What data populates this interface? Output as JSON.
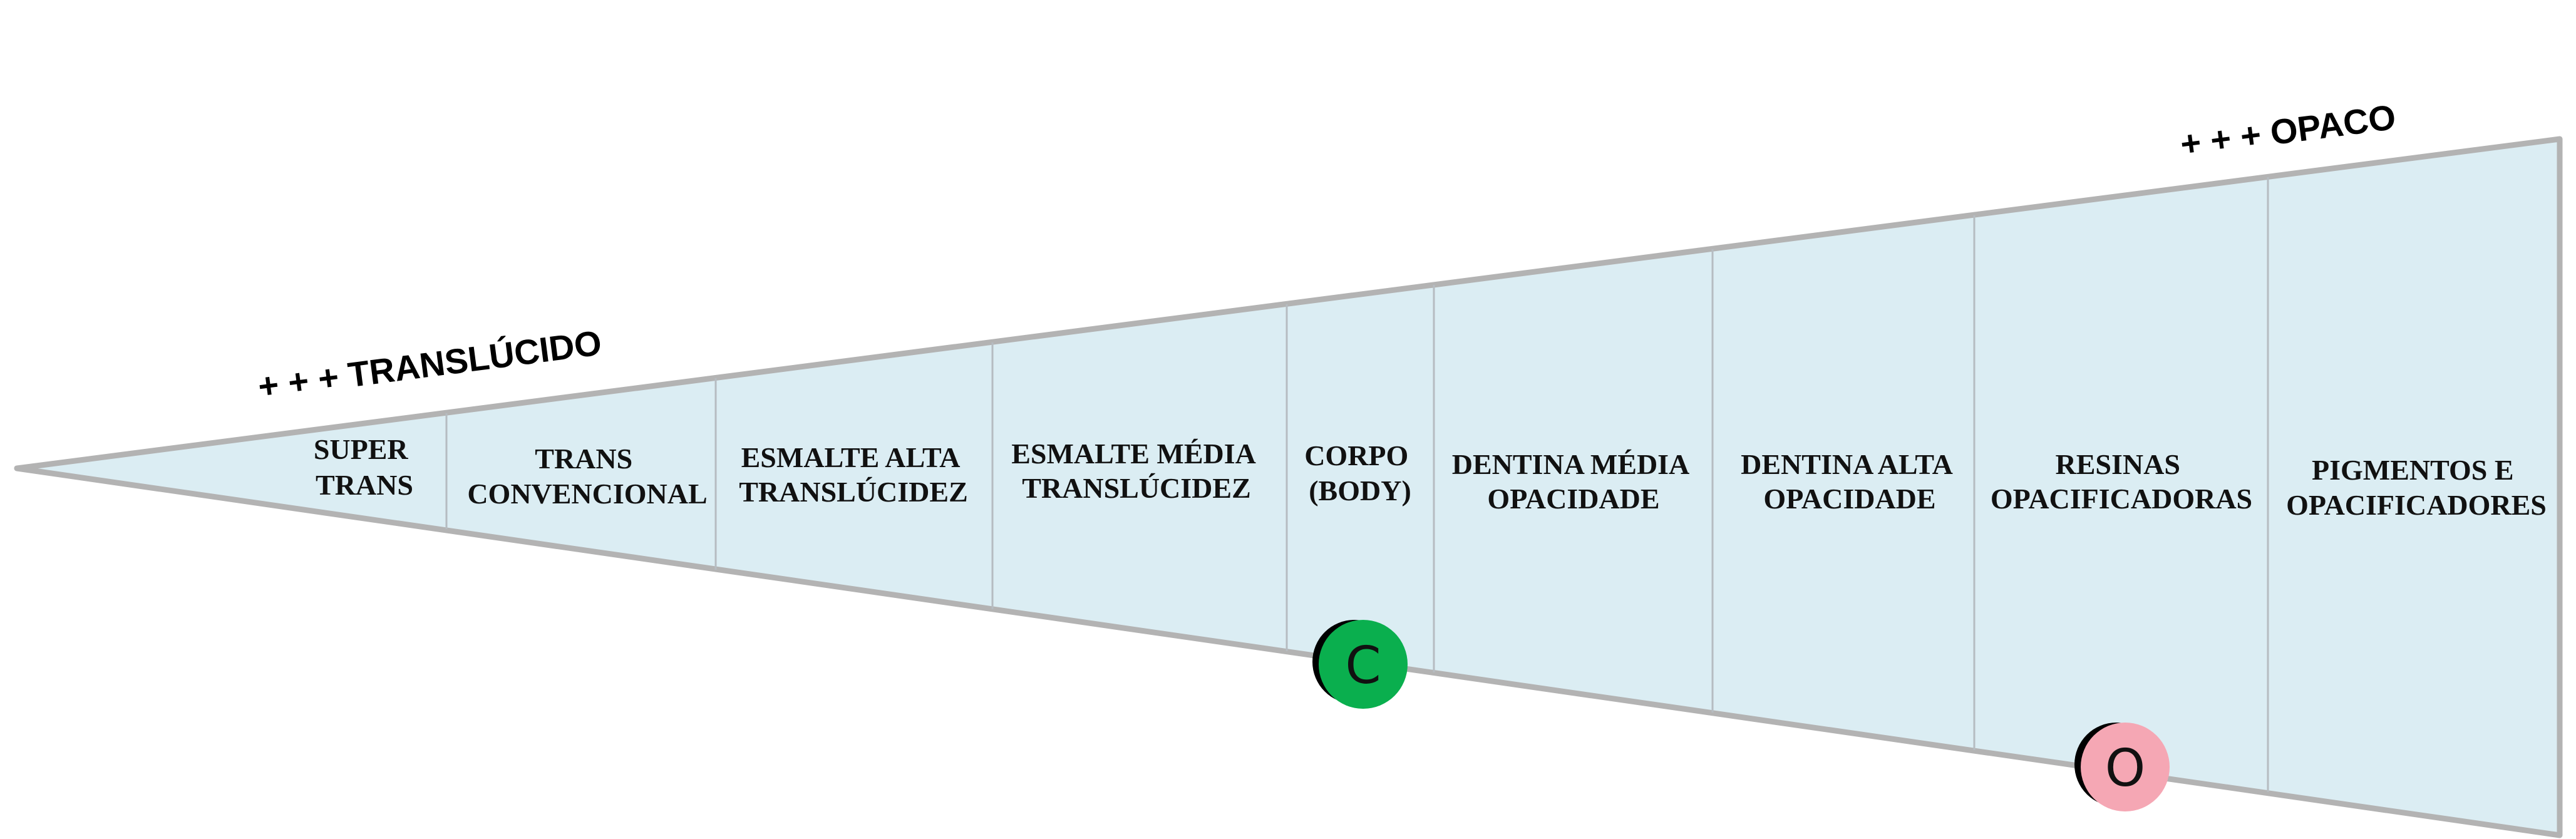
{
  "diagram": {
    "left_label": "+ + + TRANSLÚCIDO",
    "right_label": "+ + + OPACO",
    "segments": [
      {
        "line1": "SUPER",
        "line2": "TRANS"
      },
      {
        "line1": "TRANS",
        "line2": "CONVENCIONAL"
      },
      {
        "line1": "ESMALTE ALTA",
        "line2": "TRANSLÚCIDEZ"
      },
      {
        "line1": "ESMALTE MÉDIA",
        "line2": "TRANSLÚCIDEZ"
      },
      {
        "line1": "CORPO",
        "line2": "(BODY)"
      },
      {
        "line1": "DENTINA MÉDIA",
        "line2": "OPACIDADE"
      },
      {
        "line1": "DENTINA ALTA",
        "line2": "OPACIDADE"
      },
      {
        "line1": "RESINAS",
        "line2": "OPACIFICADORAS"
      },
      {
        "line1": "PIGMENTOS E",
        "line2": "OPACIFICADORES"
      }
    ],
    "badges": [
      {
        "letter": "C",
        "color": "#0aaf4e"
      },
      {
        "letter": "O",
        "color": "#f5a7b4"
      }
    ],
    "colors": {
      "fill": "#dbedf3",
      "outline": "#b3b3b3",
      "divider": "#b6bcc1",
      "badge_shadow": "#000000"
    }
  }
}
